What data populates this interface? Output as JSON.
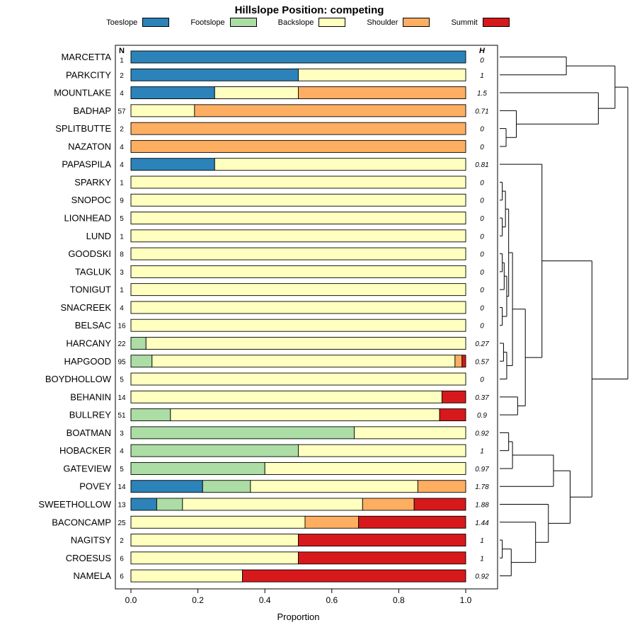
{
  "chart_data": {
    "type": "bar",
    "subtype": "horizontal-stacked-with-dendrogram",
    "title": "Hillslope Position: competing",
    "xlabel": "Proportion",
    "xlim": [
      0,
      1
    ],
    "xticks": [
      0,
      0.2,
      0.4,
      0.6,
      0.8,
      1.0
    ],
    "n_column_header": "N",
    "h_column_header": "H",
    "legend": [
      {
        "label": "Toeslope",
        "color": "#2B83BA"
      },
      {
        "label": "Footslope",
        "color": "#ABDDA4"
      },
      {
        "label": "Backslope",
        "color": "#FFFFBF"
      },
      {
        "label": "Shoulder",
        "color": "#FDAE61"
      },
      {
        "label": "Summit",
        "color": "#D7191C"
      }
    ],
    "series_order": [
      "Toeslope",
      "Footslope",
      "Backslope",
      "Shoulder",
      "Summit"
    ],
    "rows": [
      {
        "name": "MARCETTA",
        "n": 1,
        "h": "0",
        "values": [
          1,
          0,
          0,
          0,
          0
        ]
      },
      {
        "name": "PARKCITY",
        "n": 2,
        "h": "1",
        "values": [
          0.5,
          0,
          0.5,
          0,
          0
        ]
      },
      {
        "name": "MOUNTLAKE",
        "n": 4,
        "h": "1.5",
        "values": [
          0.25,
          0,
          0.25,
          0.5,
          0
        ]
      },
      {
        "name": "BADHAP",
        "n": 57,
        "h": "0.71",
        "values": [
          0,
          0,
          0.19,
          0.81,
          0
        ]
      },
      {
        "name": "SPLITBUTTE",
        "n": 2,
        "h": "0",
        "values": [
          0,
          0,
          0,
          1,
          0
        ]
      },
      {
        "name": "NAZATON",
        "n": 4,
        "h": "0",
        "values": [
          0,
          0,
          0,
          1,
          0
        ]
      },
      {
        "name": "PAPASPILA",
        "n": 4,
        "h": "0.81",
        "values": [
          0.25,
          0,
          0.75,
          0,
          0
        ]
      },
      {
        "name": "SPARKY",
        "n": 1,
        "h": "0",
        "values": [
          0,
          0,
          1,
          0,
          0
        ]
      },
      {
        "name": "SNOPOC",
        "n": 9,
        "h": "0",
        "values": [
          0,
          0,
          1,
          0,
          0
        ]
      },
      {
        "name": "LIONHEAD",
        "n": 5,
        "h": "0",
        "values": [
          0,
          0,
          1,
          0,
          0
        ]
      },
      {
        "name": "LUND",
        "n": 1,
        "h": "0",
        "values": [
          0,
          0,
          1,
          0,
          0
        ]
      },
      {
        "name": "GOODSKI",
        "n": 8,
        "h": "0",
        "values": [
          0,
          0,
          1,
          0,
          0
        ]
      },
      {
        "name": "TAGLUK",
        "n": 3,
        "h": "0",
        "values": [
          0,
          0,
          1,
          0,
          0
        ]
      },
      {
        "name": "TONIGUT",
        "n": 1,
        "h": "0",
        "values": [
          0,
          0,
          1,
          0,
          0
        ]
      },
      {
        "name": "SNACREEK",
        "n": 4,
        "h": "0",
        "values": [
          0,
          0,
          1,
          0,
          0
        ]
      },
      {
        "name": "BELSAC",
        "n": 16,
        "h": "0",
        "values": [
          0,
          0,
          1,
          0,
          0
        ]
      },
      {
        "name": "HARCANY",
        "n": 22,
        "h": "0.27",
        "values": [
          0,
          0.045,
          0.955,
          0,
          0
        ]
      },
      {
        "name": "HAPGOOD",
        "n": 95,
        "h": "0.57",
        "values": [
          0,
          0.063,
          0.905,
          0.021,
          0.011
        ]
      },
      {
        "name": "BOYDHOLLOW",
        "n": 5,
        "h": "0",
        "values": [
          0,
          0,
          1,
          0,
          0
        ]
      },
      {
        "name": "BEHANIN",
        "n": 14,
        "h": "0.37",
        "values": [
          0,
          0,
          0.929,
          0,
          0.071
        ]
      },
      {
        "name": "BULLREY",
        "n": 51,
        "h": "0.9",
        "values": [
          0,
          0.118,
          0.804,
          0,
          0.078
        ]
      },
      {
        "name": "BOATMAN",
        "n": 3,
        "h": "0.92",
        "values": [
          0,
          0.667,
          0.333,
          0,
          0
        ]
      },
      {
        "name": "HOBACKER",
        "n": 4,
        "h": "1",
        "values": [
          0,
          0.5,
          0.5,
          0,
          0
        ]
      },
      {
        "name": "GATEVIEW",
        "n": 5,
        "h": "0.97",
        "values": [
          0,
          0.4,
          0.6,
          0,
          0
        ]
      },
      {
        "name": "POVEY",
        "n": 14,
        "h": "1.78",
        "values": [
          0.214,
          0.143,
          0.5,
          0.143,
          0
        ]
      },
      {
        "name": "SWEETHOLLOW",
        "n": 13,
        "h": "1.88",
        "values": [
          0.077,
          0.077,
          0.538,
          0.154,
          0.154
        ]
      },
      {
        "name": "BACONCAMP",
        "n": 25,
        "h": "1.44",
        "values": [
          0,
          0,
          0.52,
          0.16,
          0.32
        ]
      },
      {
        "name": "NAGITSY",
        "n": 2,
        "h": "1",
        "values": [
          0,
          0,
          0.5,
          0,
          0.5
        ]
      },
      {
        "name": "CROESUS",
        "n": 6,
        "h": "1",
        "values": [
          0,
          0,
          0.5,
          0,
          0.5
        ]
      },
      {
        "name": "NAMELA",
        "n": 6,
        "h": "0.92",
        "values": [
          0,
          0,
          0.333,
          0,
          0.667
        ]
      }
    ],
    "dendrogram": {
      "orientation": "right",
      "tree": {
        "h": 1.0,
        "c": [
          {
            "h": 0.9,
            "c": [
              {
                "h": 0.52,
                "c": [
                  0,
                  1
                ]
              },
              {
                "h": 0.77,
                "c": [
                  2,
                  {
                    "h": 0.13,
                    "c": [
                      3,
                      {
                        "h": 0.05,
                        "c": [
                          4,
                          5
                        ]
                      }
                    ]
                  }
                ]
              }
            ]
          },
          {
            "h": 0.72,
            "c": [
              {
                "h": 0.33,
                "c": [
                  6,
                  {
                    "h": 0.2,
                    "c": [
                      {
                        "h": 0.1,
                        "c": [
                          {
                            "h": 0.07,
                            "c": [
                              {
                                "h": 0.045,
                                "c": [
                                  {
                                    "h": 0.02,
                                    "c": [
                                      7,
                                      8
                                    ]
                                  },
                                  {
                                    "h": 0.02,
                                    "c": [
                                      9,
                                      10
                                    ]
                                  }
                                ]
                              },
                              {
                                "h": 0.055,
                                "c": [
                                  {
                                    "h": 0.035,
                                    "c": [
                                      {
                                        "h": 0.02,
                                        "c": [
                                          11,
                                          12
                                        ]
                                      },
                                      13
                                    ]
                                  },
                                  {
                                    "h": 0.02,
                                    "c": [
                                      14,
                                      15
                                    ]
                                  }
                                ]
                              }
                            ]
                          },
                          {
                            "h": 0.055,
                            "c": [
                              {
                                "h": 0.03,
                                "c": [
                                  16,
                                  17
                                ]
                              },
                              18
                            ]
                          }
                        ]
                      },
                      {
                        "h": 0.14,
                        "c": [
                          19,
                          20
                        ]
                      }
                    ]
                  }
                ]
              },
              {
                "h": 0.55,
                "c": [
                  {
                    "h": 0.42,
                    "c": [
                      {
                        "h": 0.1,
                        "c": [
                          {
                            "h": 0.07,
                            "c": [
                              21,
                              22
                            ]
                          },
                          23
                        ]
                      },
                      24
                    ]
                  },
                  {
                    "h": 0.38,
                    "c": [
                      25,
                      {
                        "h": 0.28,
                        "c": [
                          26,
                          {
                            "h": 0.09,
                            "c": [
                              {
                                "h": 0.02,
                                "c": [
                                  27,
                                  28
                                ]
                              },
                              29
                            ]
                          }
                        ]
                      }
                    ]
                  }
                ]
              }
            ]
          }
        ]
      }
    }
  }
}
